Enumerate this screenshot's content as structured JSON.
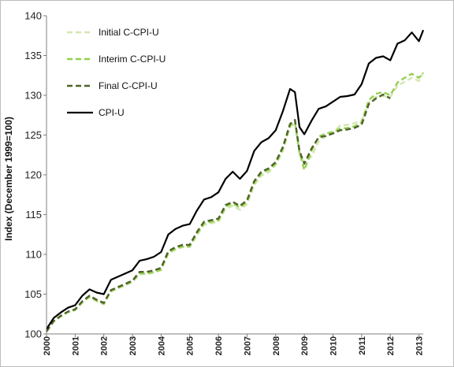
{
  "chart_data": {
    "type": "line",
    "title": "",
    "xlabel": "",
    "ylabel": "Index (December 1999=100)",
    "xlim": [
      2000,
      2013.15
    ],
    "ylim": [
      100,
      140
    ],
    "y_ticks": [
      100,
      105,
      110,
      115,
      120,
      125,
      130,
      135,
      140
    ],
    "x_ticks": [
      "2000",
      "2001",
      "2002",
      "2003",
      "2004",
      "2005",
      "2006",
      "2007",
      "2008",
      "2009",
      "2010",
      "2011",
      "2012",
      "2013"
    ],
    "grid": false,
    "legend_position": "top-left",
    "series": [
      {
        "name": "Initial C-CPI-U",
        "color": "#d4e6b0",
        "style": "dashed",
        "x": [
          2000,
          2000.25,
          2000.5,
          2000.75,
          2001,
          2001.25,
          2001.5,
          2001.75,
          2002,
          2002.25,
          2002.5,
          2002.75,
          2003,
          2003.25,
          2003.5,
          2003.75,
          2004,
          2004.25,
          2004.5,
          2004.75,
          2005,
          2005.25,
          2005.5,
          2005.75,
          2006,
          2006.25,
          2006.5,
          2006.75,
          2007,
          2007.25,
          2007.5,
          2007.75,
          2008,
          2008.25,
          2008.5,
          2008.67,
          2008.83,
          2009,
          2009.25,
          2009.5,
          2009.75,
          2010,
          2010.25,
          2010.5,
          2010.75,
          2011,
          2011.25,
          2011.5,
          2011.75,
          2012,
          2012.25,
          2012.5,
          2012.75,
          2013,
          2013.15
        ],
        "y": [
          100.3,
          101.6,
          102.2,
          102.7,
          103.0,
          103.9,
          104.6,
          104.1,
          103.7,
          105.3,
          105.7,
          106.1,
          106.5,
          107.5,
          107.5,
          107.7,
          108.0,
          110.1,
          110.6,
          110.9,
          110.9,
          112.4,
          113.7,
          113.9,
          114.1,
          115.7,
          116.1,
          115.6,
          116.3,
          118.7,
          119.9,
          120.3,
          121.2,
          123.0,
          126.0,
          126.5,
          122.5,
          121.6,
          122.3,
          124.2,
          124.8,
          125.3,
          126.2,
          126.3,
          126.5,
          126.8,
          129.1,
          129.8,
          129.9,
          129.8,
          131.2,
          131.7,
          132.2,
          131.8,
          132.9
        ]
      },
      {
        "name": "Interim C-CPI-U",
        "color": "#92d050",
        "style": "dashed",
        "x": [
          2000,
          2000.25,
          2000.5,
          2000.75,
          2001,
          2001.25,
          2001.5,
          2001.75,
          2002,
          2002.25,
          2002.5,
          2002.75,
          2003,
          2003.25,
          2003.5,
          2003.75,
          2004,
          2004.25,
          2004.5,
          2004.75,
          2005,
          2005.25,
          2005.5,
          2005.75,
          2006,
          2006.25,
          2006.5,
          2006.75,
          2007,
          2007.25,
          2007.5,
          2007.75,
          2008,
          2008.25,
          2008.5,
          2008.67,
          2008.83,
          2009,
          2009.25,
          2009.5,
          2009.75,
          2010,
          2010.25,
          2010.5,
          2010.75,
          2011,
          2011.25,
          2011.5,
          2011.75,
          2012,
          2012.25,
          2012.5,
          2012.75,
          2013,
          2013.15
        ],
        "y": [
          100.3,
          101.6,
          102.2,
          102.8,
          103.0,
          104.0,
          104.7,
          104.2,
          103.8,
          105.4,
          105.8,
          106.2,
          106.6,
          107.6,
          107.6,
          107.8,
          108.1,
          110.2,
          110.7,
          111.0,
          111.0,
          112.6,
          113.9,
          114.1,
          114.3,
          116.0,
          116.4,
          115.9,
          116.6,
          119.0,
          120.2,
          120.6,
          121.4,
          123.3,
          126.2,
          126.7,
          122.8,
          120.6,
          123.0,
          124.8,
          125.2,
          125.4,
          125.8,
          125.9,
          126.1,
          126.6,
          129.4,
          130.2,
          130.4,
          130.0,
          131.6,
          132.2,
          132.7,
          132.2,
          132.8
        ]
      },
      {
        "name": "Final C-CPI-U",
        "color": "#4f6228",
        "style": "dashed",
        "x": [
          2000,
          2000.25,
          2000.5,
          2000.75,
          2001,
          2001.25,
          2001.5,
          2001.75,
          2002,
          2002.25,
          2002.5,
          2002.75,
          2003,
          2003.25,
          2003.5,
          2003.75,
          2004,
          2004.25,
          2004.5,
          2004.75,
          2005,
          2005.25,
          2005.5,
          2005.75,
          2006,
          2006.25,
          2006.5,
          2006.75,
          2007,
          2007.25,
          2007.5,
          2007.75,
          2008,
          2008.25,
          2008.5,
          2008.67,
          2008.83,
          2009,
          2009.25,
          2009.5,
          2009.75,
          2010,
          2010.25,
          2010.5,
          2010.75,
          2011,
          2011.25,
          2011.5,
          2011.75,
          2012
        ],
        "y": [
          100.3,
          101.6,
          102.3,
          102.8,
          103.1,
          104.1,
          104.8,
          104.3,
          103.9,
          105.5,
          105.9,
          106.3,
          106.7,
          107.8,
          107.8,
          108.0,
          108.3,
          110.4,
          110.9,
          111.2,
          111.2,
          112.8,
          114.1,
          114.3,
          114.5,
          116.2,
          116.6,
          116.1,
          116.8,
          119.2,
          120.4,
          120.8,
          121.6,
          123.5,
          126.4,
          126.9,
          123.0,
          121.4,
          123.3,
          124.7,
          124.9,
          125.2,
          125.6,
          125.7,
          125.9,
          126.3,
          128.9,
          129.6,
          130.1,
          129.6
        ]
      },
      {
        "name": "CPI-U",
        "color": "#000000",
        "style": "solid",
        "x": [
          2000,
          2000.25,
          2000.5,
          2000.75,
          2001,
          2001.25,
          2001.5,
          2001.75,
          2002,
          2002.25,
          2002.5,
          2002.75,
          2003,
          2003.25,
          2003.5,
          2003.75,
          2004,
          2004.25,
          2004.5,
          2004.75,
          2005,
          2005.25,
          2005.5,
          2005.75,
          2006,
          2006.25,
          2006.5,
          2006.75,
          2007,
          2007.25,
          2007.5,
          2007.75,
          2008,
          2008.25,
          2008.5,
          2008.67,
          2008.83,
          2009,
          2009.25,
          2009.5,
          2009.75,
          2010,
          2010.25,
          2010.5,
          2010.75,
          2011,
          2011.25,
          2011.5,
          2011.75,
          2012,
          2012.25,
          2012.5,
          2012.75,
          2013,
          2013.15
        ],
        "y": [
          100.6,
          102.0,
          102.7,
          103.3,
          103.6,
          104.8,
          105.6,
          105.2,
          105.0,
          106.8,
          107.2,
          107.6,
          108.0,
          109.2,
          109.4,
          109.7,
          110.3,
          112.5,
          113.2,
          113.6,
          113.8,
          115.5,
          116.9,
          117.2,
          117.8,
          119.5,
          120.4,
          119.5,
          120.5,
          123.0,
          124.1,
          124.6,
          125.6,
          128.0,
          130.8,
          130.4,
          126.0,
          125.1,
          126.8,
          128.3,
          128.6,
          129.2,
          129.8,
          129.9,
          130.1,
          131.4,
          134.0,
          134.7,
          134.9,
          134.4,
          136.5,
          136.9,
          137.9,
          136.8,
          138.2
        ]
      }
    ]
  }
}
